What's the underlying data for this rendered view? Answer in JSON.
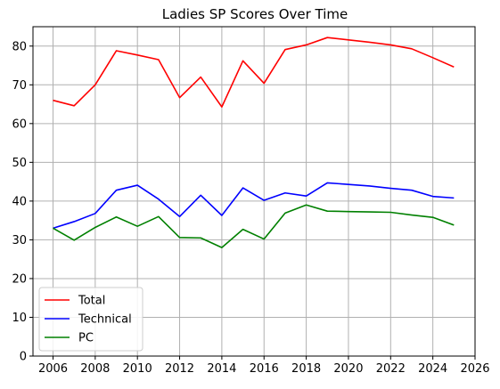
{
  "chart_data": {
    "type": "line",
    "title": "Ladies SP Scores Over Time",
    "xlabel": "",
    "ylabel": "",
    "xlim": [
      2005.05,
      2026
    ],
    "ylim": [
      0,
      85
    ],
    "x_ticks": [
      2006,
      2008,
      2010,
      2012,
      2014,
      2016,
      2018,
      2020,
      2022,
      2024,
      2026
    ],
    "y_ticks": [
      0,
      10,
      20,
      30,
      40,
      50,
      60,
      70,
      80
    ],
    "grid": true,
    "legend_position": "lower-left",
    "x": [
      2006,
      2007,
      2008,
      2009,
      2010,
      2011,
      2012,
      2013,
      2014,
      2015,
      2016,
      2017,
      2018,
      2019,
      2020,
      2021,
      2022,
      2023,
      2024,
      2025
    ],
    "series": [
      {
        "name": "Total",
        "color": "#ff0000",
        "values": [
          66.0,
          64.6,
          70.0,
          78.8,
          77.7,
          76.5,
          66.7,
          72.0,
          64.3,
          76.2,
          70.4,
          79.1,
          80.3,
          82.2,
          81.6,
          81.0,
          80.3,
          79.3,
          77.0,
          74.6
        ]
      },
      {
        "name": "Technical",
        "color": "#0000ff",
        "values": [
          33.0,
          34.7,
          36.8,
          42.8,
          44.1,
          40.5,
          36.0,
          41.5,
          36.3,
          43.4,
          40.2,
          42.1,
          41.3,
          44.7,
          44.3,
          43.9,
          43.3,
          42.8,
          41.2,
          40.8
        ]
      },
      {
        "name": "PC",
        "color": "#008000",
        "values": [
          33.0,
          29.9,
          33.2,
          35.9,
          33.5,
          36.0,
          30.6,
          30.5,
          28.0,
          32.7,
          30.2,
          36.9,
          39.0,
          37.4,
          37.3,
          37.2,
          37.1,
          36.4,
          35.8,
          33.8
        ]
      }
    ]
  }
}
